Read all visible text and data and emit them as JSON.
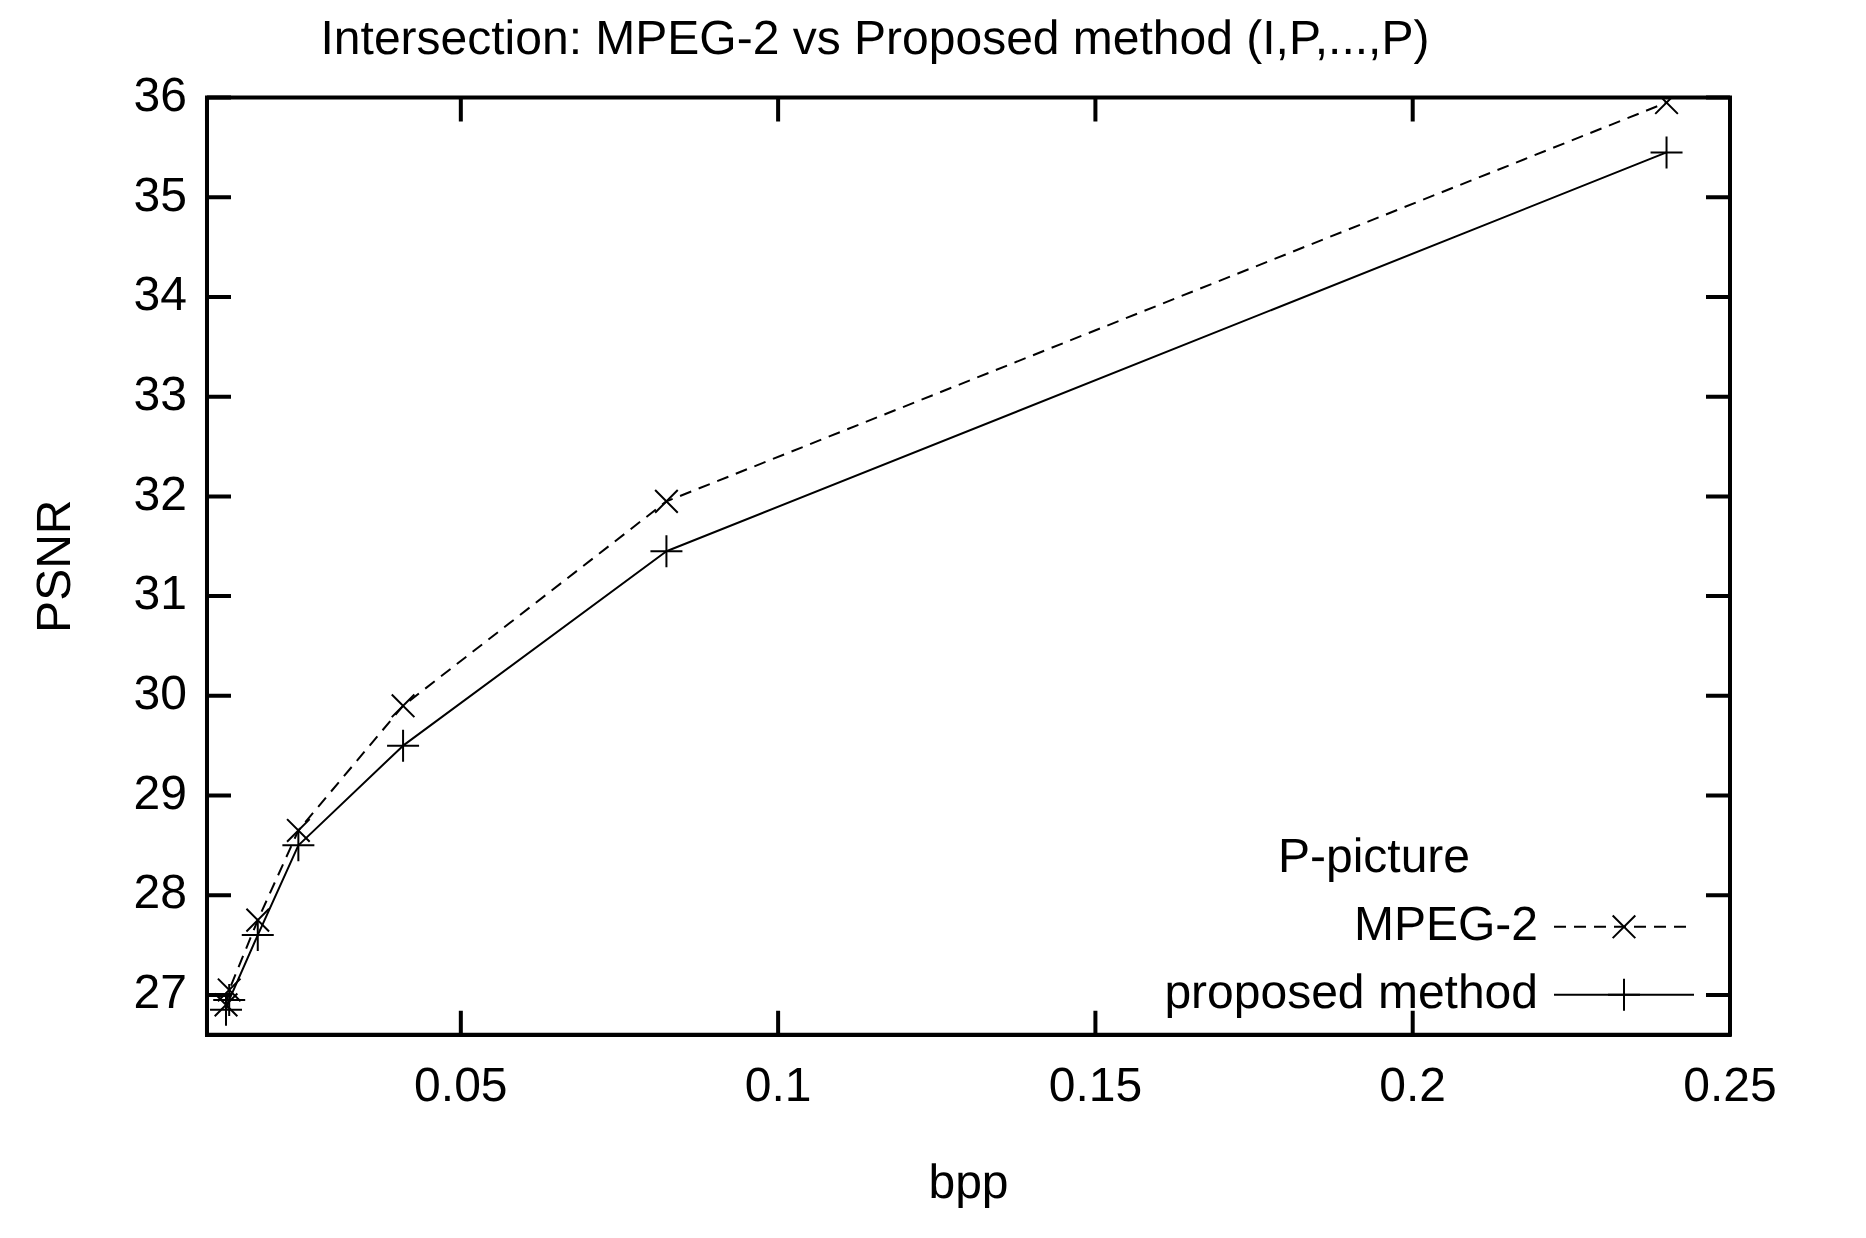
{
  "chart_data": {
    "type": "line",
    "title": "Intersection: MPEG-2 vs Proposed method (I,P,...,P)",
    "xlabel": "bpp",
    "ylabel": "PSNR",
    "legend_title": "P-picture",
    "legend": "bottom right",
    "grid": false,
    "xlim": [
      0.01,
      0.25
    ],
    "xticks": [
      {
        "value": 0.01,
        "label": null
      },
      0.05,
      0.1,
      0.15,
      0.2,
      0.25
    ],
    "ylim": [
      26.6,
      36
    ],
    "yticks": [
      27,
      28,
      29,
      30,
      31,
      32,
      33,
      34,
      35,
      36
    ],
    "series": [
      {
        "name": "MPEG-2",
        "color": "#000000",
        "marker": "cross",
        "line_style": "dashed",
        "x": [
          0.013,
          0.0135,
          0.018,
          0.0244,
          0.0409,
          0.0824,
          0.24
        ],
        "values": [
          26.9,
          27.05,
          27.75,
          28.65,
          29.9,
          31.95,
          35.95
        ]
      },
      {
        "name": "proposed method",
        "color": "#000000",
        "marker": "plus",
        "line_style": "solid",
        "x": [
          0.013,
          0.0135,
          0.018,
          0.0244,
          0.0409,
          0.0824,
          0.24
        ],
        "values": [
          26.85,
          26.95,
          27.6,
          28.5,
          29.5,
          31.45,
          35.45
        ]
      }
    ]
  }
}
